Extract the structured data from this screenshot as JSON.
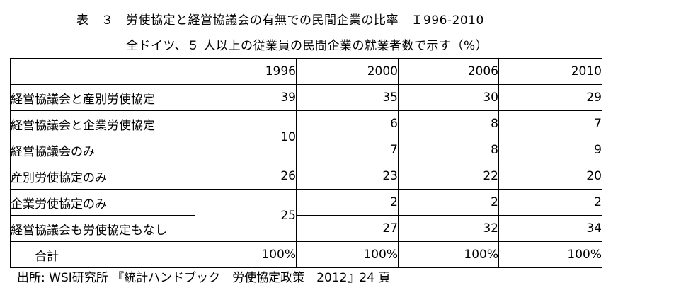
{
  "title": "表　３　労使協定と経営協議会の有無での民間企業の比率　Ｉ996-2010",
  "subtitle": "全ドイツ、５ 人以上の従業員の民間企業の就業者数で示す（%）",
  "table": {
    "header": [
      "",
      "1996",
      "2000",
      "2006",
      "2010"
    ],
    "rows": [
      {
        "label": "経営協議会と産別労使協定",
        "values": [
          "39",
          "35",
          "30",
          "29"
        ]
      },
      {
        "label": "経営協議会と企業労使協定",
        "merged_1996": "10",
        "values": [
          "6",
          "8",
          "7"
        ]
      },
      {
        "label": "経営協議会のみ",
        "values": [
          "7",
          "8",
          "9"
        ]
      },
      {
        "label": "産別労使協定のみ",
        "values": [
          "26",
          "23",
          "22",
          "20"
        ]
      },
      {
        "label": "企業労使協定のみ",
        "merged_1996": "25",
        "values": [
          "2",
          "2",
          "2"
        ]
      },
      {
        "label": "経営協議会も労使協定もなし",
        "values": [
          "27",
          "32",
          "34"
        ]
      },
      {
        "label": "合計",
        "values": [
          "100%",
          "100%",
          "100%",
          "100%"
        ]
      }
    ]
  },
  "source": "出所: WSI研究所 『統計ハンドブック　労使協定政策　2012』24 頁"
}
